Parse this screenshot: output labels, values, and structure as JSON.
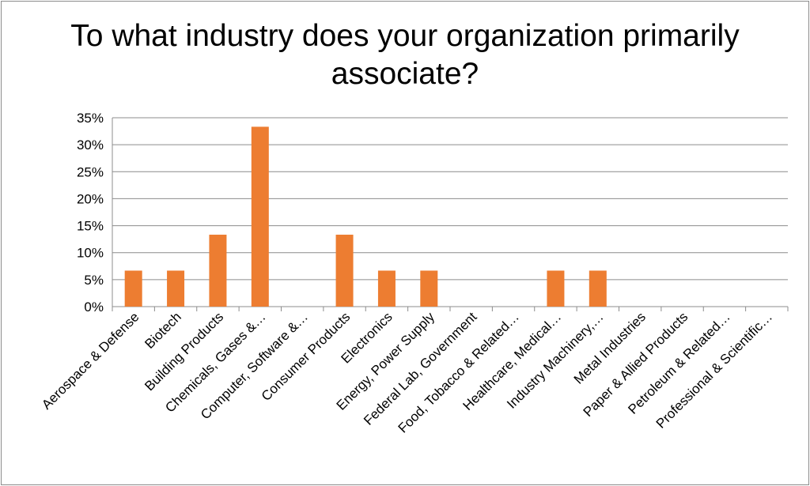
{
  "chart_data": {
    "type": "bar",
    "title": "To what industry does your organization primarily associate?",
    "categories": [
      "Aerospace & Defense",
      "Biotech",
      "Building Products",
      "Chemicals, Gases &…",
      "Computer, Software &…",
      "Consumer Products",
      "Electronics",
      "Energy, Power Supply",
      "Federal Lab, Government",
      "Food, Tobacco & Related…",
      "Healthcare, Medical…",
      "Industry Machinery,…",
      "Metal Industries",
      "Paper & Allied Products",
      "Petroleum & Related…",
      "Professional & Scientific…"
    ],
    "values": [
      6.67,
      6.67,
      13.33,
      33.33,
      0,
      13.33,
      6.67,
      6.67,
      0,
      0,
      6.67,
      6.67,
      0,
      0,
      0,
      0
    ],
    "yticks": [
      "0%",
      "5%",
      "10%",
      "15%",
      "20%",
      "25%",
      "30%",
      "35%"
    ],
    "ylim": [
      0,
      35
    ],
    "ytick_step": 5,
    "xlabel": "",
    "ylabel": "",
    "grid": true,
    "bar_color": "#ED7D31",
    "grid_color": "#8c8c8c"
  }
}
